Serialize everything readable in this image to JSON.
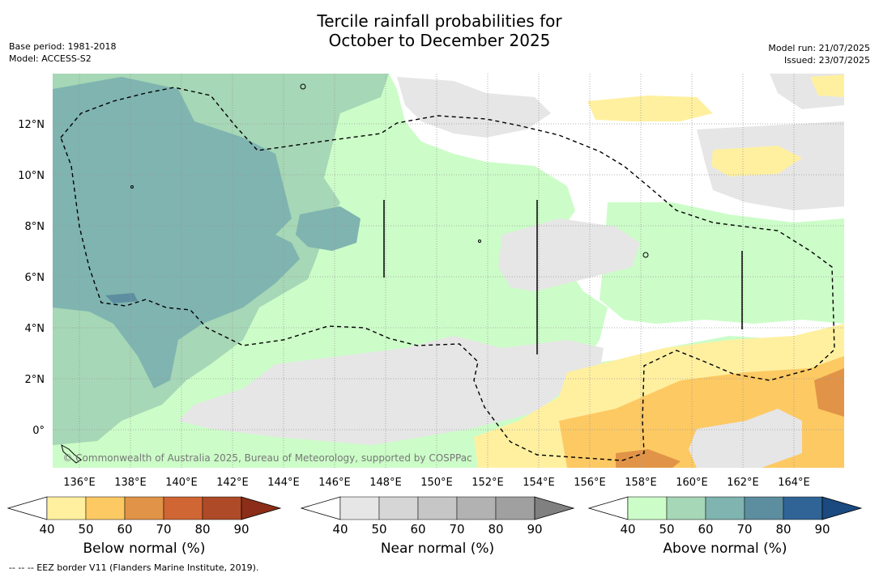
{
  "title": {
    "line1": "Tercile rainfall probabilities for",
    "line2": "October to December 2025"
  },
  "meta": {
    "base_period": "Base period: 1981-2018",
    "model": "Model: ACCESS-S2",
    "model_run": "Model run: 21/07/2025",
    "issued": "Issued: 23/07/2025"
  },
  "map": {
    "lon_labels": [
      "136°E",
      "138°E",
      "140°E",
      "142°E",
      "144°E",
      "146°E",
      "148°E",
      "150°E",
      "152°E",
      "154°E",
      "156°E",
      "158°E",
      "160°E",
      "162°E",
      "164°E"
    ],
    "lat_labels": [
      "12°N",
      "10°N",
      "8°N",
      "6°N",
      "4°N",
      "2°N",
      "0°"
    ],
    "copyright": "© Commonwealth of Australia 2025, Bureau of Meteorology, supported by COSPPac"
  },
  "colorbars": [
    {
      "title": "Below normal (%)",
      "ticks": [
        "40",
        "50",
        "60",
        "70",
        "80",
        "90"
      ],
      "colors": [
        "#ffffff",
        "#fff0a0",
        "#fdc963",
        "#e19447",
        "#cf6633",
        "#ae4a27",
        "#8b2d18"
      ]
    },
    {
      "title": "Near normal (%)",
      "ticks": [
        "40",
        "50",
        "60",
        "70",
        "80",
        "90"
      ],
      "colors": [
        "#ffffff",
        "#e6e6e6",
        "#d6d6d6",
        "#c6c6c6",
        "#b2b2b2",
        "#a0a0a0",
        "#808080"
      ]
    },
    {
      "title": "Above normal (%)",
      "ticks": [
        "40",
        "50",
        "60",
        "70",
        "80",
        "90"
      ],
      "colors": [
        "#ffffff",
        "#ccfdc8",
        "#a6d7b6",
        "#7fb4b0",
        "#5d8ea0",
        "#316496",
        "#1a4a80"
      ]
    }
  ],
  "footer": "--  --  -- EEZ border V11 (Flanders Marine Institute, 2019)."
}
